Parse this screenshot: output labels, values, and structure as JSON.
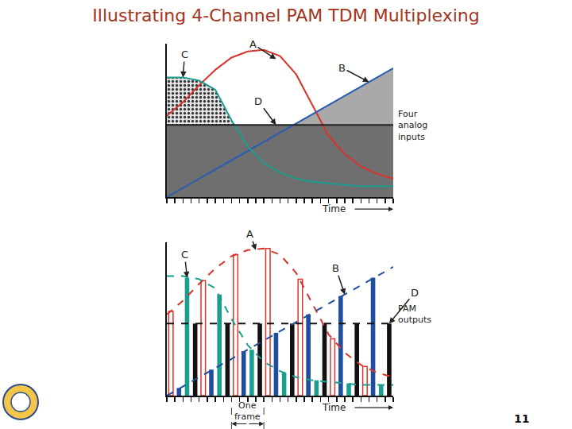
{
  "title": "Illustrating 4-Channel PAM TDM Multiplexing",
  "page_number": "11",
  "chart_data": [
    {
      "type": "area",
      "x": [
        0,
        2,
        4,
        6,
        8,
        10,
        12,
        14,
        16,
        18,
        20,
        22,
        24,
        26,
        28
      ],
      "series": [
        {
          "name": "A",
          "color": "#d9342b",
          "values": [
            5.3,
            6.2,
            7.3,
            8.3,
            9.1,
            9.5,
            9.6,
            9.2,
            8.0,
            6.0,
            4.0,
            2.8,
            2.0,
            1.5,
            1.2
          ]
        },
        {
          "name": "B",
          "color": "#2a5db0",
          "values": [
            0,
            0.6,
            1.2,
            1.8,
            2.4,
            3.0,
            3.6,
            4.2,
            4.8,
            5.4,
            6.0,
            6.6,
            7.2,
            7.8,
            8.4
          ]
        },
        {
          "name": "C",
          "color": "#1a9e8f",
          "values": [
            7.8,
            7.8,
            7.6,
            7.0,
            5.0,
            3.3,
            2.2,
            1.6,
            1.2,
            1.0,
            0.9,
            0.8,
            0.7,
            0.7,
            0.7
          ]
        },
        {
          "name": "D",
          "color": "#222222",
          "values": [
            4.7,
            4.7,
            4.7,
            4.7,
            4.7,
            4.7,
            4.7,
            4.7,
            4.7,
            4.7,
            4.7,
            4.7,
            4.7,
            4.7,
            4.7
          ]
        }
      ],
      "xlim": [
        0,
        28
      ],
      "ylim": [
        0,
        10
      ],
      "xticks": [
        0,
        1,
        2,
        3,
        4,
        5,
        6,
        7,
        8,
        9,
        10,
        11,
        12,
        13,
        14,
        15,
        16,
        17,
        18,
        19,
        20,
        21,
        22,
        23,
        24,
        25,
        26,
        27,
        28
      ],
      "tick_labels": false,
      "grid": false,
      "xlabel": "Time",
      "note": "Four analog inputs",
      "annotations": [
        {
          "text": "C",
          "x": 2,
          "y": 7.8
        },
        {
          "text": "A",
          "x": 13.5,
          "y": 9.0
        },
        {
          "text": "B",
          "x": 25,
          "y": 7.5
        },
        {
          "text": "D",
          "x": 13.5,
          "y": 4.7
        }
      ]
    },
    {
      "type": "bar",
      "x": [
        0,
        2,
        4,
        6,
        8,
        10,
        12,
        14,
        16,
        18,
        20,
        22,
        24,
        26,
        28
      ],
      "series": [
        {
          "name": "A",
          "color": "#d9342b",
          "line_style": "dashed",
          "marker": "hollow",
          "values": [
            5.3,
            6.2,
            7.3,
            8.3,
            9.1,
            9.5,
            9.6,
            9.2,
            8.0,
            6.0,
            4.0,
            2.8,
            2.0,
            1.5,
            1.2
          ],
          "samples": {
            "x": [
              0.5,
              4.5,
              8.5,
              12.5,
              16.5,
              20.5,
              24.5
            ],
            "values": [
              5.5,
              7.5,
              9.2,
              9.6,
              7.6,
              3.7,
              1.9
            ]
          }
        },
        {
          "name": "B",
          "color": "#1f4e9c",
          "line_style": "dashed",
          "values": [
            0,
            0.6,
            1.2,
            1.8,
            2.4,
            3.0,
            3.6,
            4.2,
            4.8,
            5.4,
            6.0,
            6.6,
            7.2,
            7.8,
            8.4
          ],
          "samples": {
            "x": [
              1.5,
              5.5,
              9.5,
              13.5,
              17.5,
              21.5,
              25.5
            ],
            "values": [
              0.5,
              1.7,
              2.9,
              4.1,
              5.3,
              6.5,
              7.7
            ]
          }
        },
        {
          "name": "C",
          "color": "#1a9e8f",
          "line_style": "dashed",
          "values": [
            7.8,
            7.8,
            7.6,
            7.0,
            5.0,
            3.3,
            2.2,
            1.6,
            1.2,
            1.0,
            0.9,
            0.8,
            0.7,
            0.7,
            0.7
          ],
          "samples": {
            "x": [
              2.5,
              6.5,
              10.5,
              14.5,
              18.5,
              22.5,
              26.5
            ],
            "values": [
              7.7,
              6.6,
              3.0,
              1.5,
              1.0,
              0.8,
              0.7
            ]
          }
        },
        {
          "name": "D",
          "color": "#111111",
          "line_style": "dashed",
          "values": [
            4.7,
            4.7,
            4.7,
            4.7,
            4.7,
            4.7,
            4.7,
            4.7,
            4.7,
            4.7,
            4.7,
            4.7,
            4.7,
            4.7,
            4.7
          ],
          "samples": {
            "x": [
              3.5,
              7.5,
              11.5,
              15.5,
              19.5,
              23.5,
              27.5
            ],
            "values": [
              4.7,
              4.7,
              4.7,
              4.7,
              4.7,
              4.7,
              4.7
            ]
          }
        }
      ],
      "xlim": [
        0,
        28
      ],
      "ylim": [
        0,
        10
      ],
      "xticks": [
        0,
        1,
        2,
        3,
        4,
        5,
        6,
        7,
        8,
        9,
        10,
        11,
        12,
        13,
        14,
        15,
        16,
        17,
        18,
        19,
        20,
        21,
        22,
        23,
        24,
        25,
        26,
        27,
        28
      ],
      "tick_labels": false,
      "grid": false,
      "xlabel": "Time",
      "note": "PAM outputs",
      "frame": {
        "label": "One frame",
        "x": [
          8,
          12
        ]
      },
      "annotations": [
        {
          "text": "C",
          "x": 2.5,
          "y": 7.7
        },
        {
          "text": "A",
          "x": 11,
          "y": 9.5
        },
        {
          "text": "B",
          "x": 22,
          "y": 6.6
        },
        {
          "text": "D",
          "x": 27.5,
          "y": 4.7
        }
      ]
    }
  ]
}
